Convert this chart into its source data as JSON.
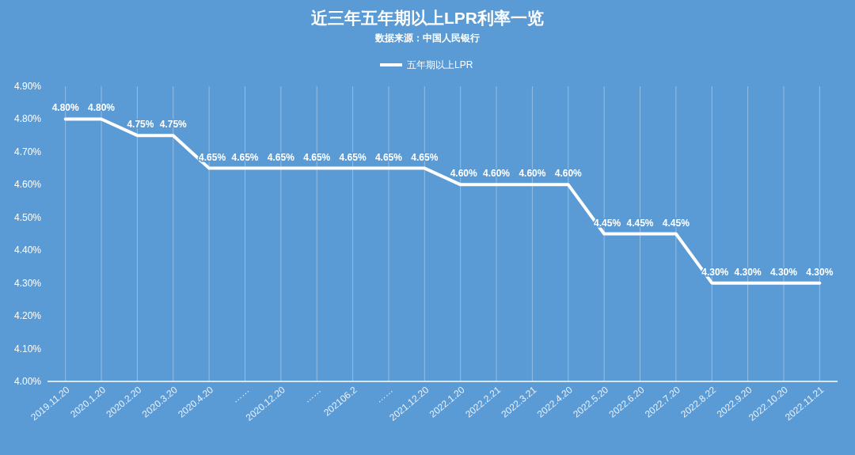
{
  "chart_data": {
    "type": "line",
    "title": "近三年五年期以上LPR利率一览",
    "subtitle": "数据来源：中国人民银行",
    "categories": [
      "2019.11.20",
      "2020.1.20",
      "2020.2.20",
      "2020.3.20",
      "2020.4.20",
      "……",
      "2020.12.20",
      "……",
      "202106.2",
      "……",
      "2021.12.20",
      "2022.1.20",
      "2022.2.21",
      "2022.3.21",
      "2022.4.20",
      "2022.5.20",
      "2022.6.20",
      "2022.7.20",
      "2022.8.22",
      "2022.9.20",
      "2022.10.20",
      "2022.11.21"
    ],
    "series": [
      {
        "name": "五年期以上LPR",
        "color": "#ffffff",
        "values": [
          4.8,
          4.8,
          4.75,
          4.75,
          4.65,
          4.65,
          4.65,
          4.65,
          4.65,
          4.65,
          4.65,
          4.6,
          4.6,
          4.6,
          4.6,
          4.45,
          4.45,
          4.45,
          4.3,
          4.3,
          4.3,
          4.3
        ],
        "value_labels": [
          "4.80%",
          "4.80%",
          "4.75%",
          "4.75%",
          "4.65%",
          "4.65%",
          "4.65%",
          "4.65%",
          "4.65%",
          "4.65%",
          "4.65%",
          "4.60%",
          "4.60%",
          "4.60%",
          "4.60%",
          "4.45%",
          "4.45%",
          "4.45%",
          "4.30%",
          "4.30%",
          "4.30%",
          "4.30%"
        ]
      }
    ],
    "ylim": [
      4.0,
      4.9
    ],
    "yticks": [
      {
        "value": 4.0,
        "label": "4.00%"
      },
      {
        "value": 4.1,
        "label": "4.10%"
      },
      {
        "value": 4.2,
        "label": "4.20%"
      },
      {
        "value": 4.3,
        "label": "4.30%"
      },
      {
        "value": 4.4,
        "label": "4.40%"
      },
      {
        "value": 4.5,
        "label": "4.50%"
      },
      {
        "value": 4.6,
        "label": "4.60%"
      },
      {
        "value": 4.7,
        "label": "4.70%"
      },
      {
        "value": 4.8,
        "label": "4.80%"
      },
      {
        "value": 4.9,
        "label": "4.90%"
      }
    ],
    "grid": "x",
    "legend": "top",
    "marker": "none",
    "line_style": "solid"
  }
}
